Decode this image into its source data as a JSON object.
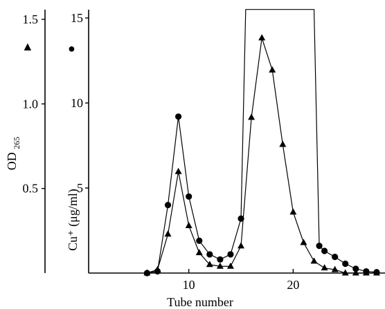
{
  "chart_data": {
    "type": "line",
    "xlabel": "Tube number",
    "x_ticks": [
      "10",
      "20"
    ],
    "xlim": [
      0.4,
      28.8
    ],
    "left_axis": {
      "label_main": "OD",
      "label_sub": "265",
      "marker": "▲",
      "ticks": [
        "0.5",
        "1.0",
        "1.5"
      ],
      "ylim": [
        0,
        1.5
      ]
    },
    "right_axis": {
      "label": "Cu⁺ (μg/ml)",
      "marker": "●",
      "ticks": [
        "5",
        "10",
        "15"
      ],
      "ylim": [
        0,
        15
      ]
    },
    "series": [
      {
        "axis": "left",
        "marker": "triangle",
        "x": [
          6,
          7,
          8,
          9,
          10,
          11,
          12,
          13,
          14,
          15,
          16,
          17,
          18,
          19,
          20,
          21,
          22,
          23,
          24,
          25,
          26,
          27,
          28
        ],
        "y": [
          0.0,
          0.02,
          0.23,
          0.6,
          0.28,
          0.12,
          0.05,
          0.04,
          0.04,
          0.16,
          0.92,
          1.39,
          1.2,
          0.76,
          0.36,
          0.18,
          0.07,
          0.03,
          0.02,
          0.0,
          0.0,
          0.0,
          0.0
        ]
      },
      {
        "axis": "right",
        "marker": "circle",
        "x": [
          6,
          7,
          8,
          9,
          10,
          11,
          12,
          13,
          14,
          15,
          15.45,
          22,
          22.5,
          23,
          24,
          25,
          26,
          27,
          28
        ],
        "y": [
          0.0,
          0.1,
          4.0,
          9.2,
          4.5,
          1.9,
          1.1,
          0.8,
          1.1,
          3.2,
          15.5,
          15.5,
          1.6,
          1.3,
          0.95,
          0.55,
          0.25,
          0.1,
          0.05
        ],
        "drawn_x": [
          6,
          7,
          8,
          9,
          10,
          11,
          12,
          13,
          14,
          15,
          22.5,
          23,
          24,
          25,
          26,
          27,
          28
        ],
        "drawn_y": [
          0.0,
          0.1,
          4.0,
          9.2,
          4.5,
          1.9,
          1.1,
          0.8,
          1.1,
          3.2,
          1.6,
          1.3,
          0.95,
          0.55,
          0.25,
          0.1,
          0.05
        ]
      }
    ]
  }
}
